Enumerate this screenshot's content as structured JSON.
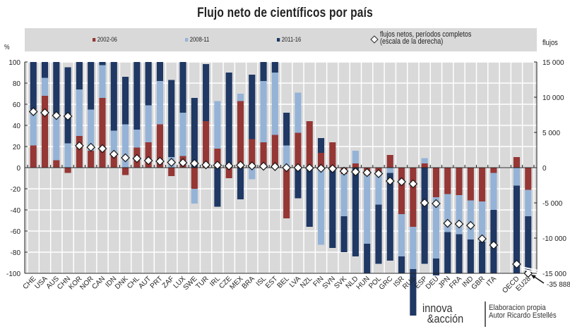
{
  "chart_data": {
    "type": "bar",
    "title": "Flujo neto de científicos por país",
    "stacked": true,
    "ylabel_left": "%",
    "ylabel_right": "flujos",
    "ylim_left": [
      -100,
      100
    ],
    "ylim_right": [
      -15000,
      15000
    ],
    "yticks_left": [
      "100",
      "80",
      "60",
      "40",
      "20",
      "0",
      "-20",
      "-40",
      "-60",
      "-80",
      "-100"
    ],
    "yticks_right": [
      "15 000",
      "10 000",
      "5 000",
      "0",
      "-5 000",
      "-10 000",
      "-15 000"
    ],
    "grid": true,
    "legend_position": "top",
    "categories": [
      "CHE",
      "USA",
      "AUS",
      "CHN",
      "KOR",
      "NOR",
      "CAN",
      "IDN",
      "DNK",
      "CHL",
      "AUT",
      "PRT",
      "ZAF",
      "LUX",
      "SWE",
      "TUR",
      "IRL",
      "CZE",
      "MEX",
      "BRA",
      "ISL",
      "EST",
      "BEL",
      "LVA",
      "NZL",
      "FIN",
      "SVN",
      "SVK",
      "NLD",
      "HUN",
      "POL",
      "GRC",
      "ISR",
      "RUS",
      "ESP",
      "DEU",
      "JPN",
      "FRA",
      "IND",
      "GBR",
      "ITA",
      "",
      "OECD",
      "EU28"
    ],
    "series": [
      {
        "name": "2002-06",
        "color": "#953735",
        "values": [
          21,
          68,
          7,
          -5,
          30,
          16,
          66,
          13,
          -7,
          19,
          24,
          41,
          -8,
          11,
          -20,
          44,
          18,
          -10,
          63,
          27,
          24,
          31,
          -48,
          33,
          44,
          14,
          24,
          -6,
          4,
          -7,
          -4,
          12,
          -44,
          -56,
          4,
          -28,
          -25,
          -26,
          -31,
          -32,
          -5,
          null,
          10,
          -21
        ]
      },
      {
        "name": "2008-11",
        "color": "#95b3d7",
        "values": [
          34,
          17,
          44,
          23,
          44,
          39,
          31,
          22,
          41,
          17,
          35,
          41,
          10,
          41,
          -14,
          0,
          45,
          0,
          7,
          -11,
          58,
          59,
          21,
          38,
          0,
          -73,
          0,
          -40,
          12,
          -65,
          -31,
          -5,
          -40,
          -40,
          5,
          -58,
          -36,
          -37,
          -37,
          -38,
          -35,
          null,
          -17,
          -25
        ]
      },
      {
        "name": "2011-16",
        "color": "#1f3864",
        "values": [
          45,
          15,
          49,
          72,
          26,
          45,
          3,
          65,
          45,
          64,
          41,
          18,
          73,
          48,
          66,
          54,
          -37,
          90,
          -30,
          61,
          18,
          10,
          31,
          -29,
          -56,
          14,
          -76,
          -34,
          -84,
          -28,
          -56,
          -83,
          -16,
          -44,
          -91,
          -16,
          -39,
          -37,
          -32,
          -30,
          -60,
          null,
          -83,
          -54
        ]
      },
      {
        "name": "flujos netos, períodos completos (escala de la derecha)",
        "axis": "right",
        "marker": "diamond",
        "values": [
          7950,
          7800,
          7400,
          7300,
          3100,
          2900,
          2700,
          1900,
          1400,
          1300,
          1000,
          900,
          750,
          700,
          600,
          400,
          350,
          250,
          350,
          250,
          200,
          150,
          0,
          0,
          -50,
          -100,
          -150,
          -500,
          -600,
          -700,
          -850,
          -1900,
          -2000,
          -2300,
          -5000,
          -5100,
          -7900,
          -8000,
          -8200,
          -10100,
          -11000,
          null,
          -13700,
          -35888
        ]
      }
    ],
    "annotations": [
      "-35 888"
    ]
  },
  "legend": {
    "s1": "2002-06",
    "s2": "2008-11",
    "s3": "2011-16",
    "s4_line1": "flujos netos, períodos completos",
    "s4_line2": "(escala de la derecha)"
  },
  "footer": {
    "logo_line1": "innova",
    "logo_line2": "&acción",
    "text_line1": "Elaboracion propia",
    "text_line2": "Autor Ricardo Estellés"
  }
}
